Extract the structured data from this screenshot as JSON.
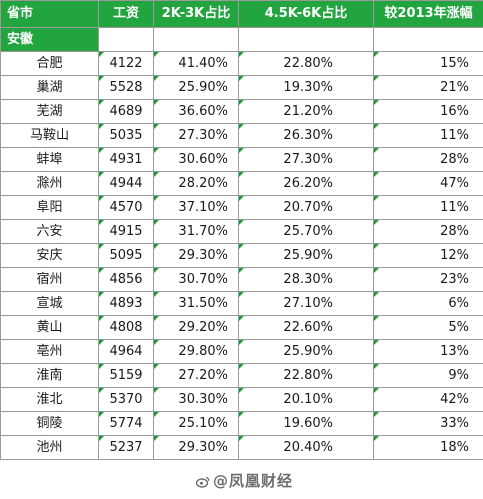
{
  "header": {
    "city": "省市",
    "wage": "工资",
    "share_2k_3k": "2K-3K占比",
    "share_4_5k_6k": "4.5K-6K占比",
    "growth_vs_2013": "较2013年涨幅"
  },
  "province": "安徽",
  "rows": [
    {
      "city": "合肥",
      "wage": "4122",
      "share_2k_3k": "41.40%",
      "share_4_5k_6k": "22.80%",
      "growth": "15%"
    },
    {
      "city": "巢湖",
      "wage": "5528",
      "share_2k_3k": "25.90%",
      "share_4_5k_6k": "19.30%",
      "growth": "21%"
    },
    {
      "city": "芜湖",
      "wage": "4689",
      "share_2k_3k": "36.60%",
      "share_4_5k_6k": "21.20%",
      "growth": "16%"
    },
    {
      "city": "马鞍山",
      "wage": "5035",
      "share_2k_3k": "27.30%",
      "share_4_5k_6k": "26.30%",
      "growth": "11%"
    },
    {
      "city": "蚌埠",
      "wage": "4931",
      "share_2k_3k": "30.60%",
      "share_4_5k_6k": "27.30%",
      "growth": "28%"
    },
    {
      "city": "滁州",
      "wage": "4944",
      "share_2k_3k": "28.20%",
      "share_4_5k_6k": "26.20%",
      "growth": "47%"
    },
    {
      "city": "阜阳",
      "wage": "4570",
      "share_2k_3k": "37.10%",
      "share_4_5k_6k": "20.70%",
      "growth": "11%"
    },
    {
      "city": "六安",
      "wage": "4915",
      "share_2k_3k": "31.70%",
      "share_4_5k_6k": "25.70%",
      "growth": "28%"
    },
    {
      "city": "安庆",
      "wage": "5095",
      "share_2k_3k": "29.30%",
      "share_4_5k_6k": "25.90%",
      "growth": "12%"
    },
    {
      "city": "宿州",
      "wage": "4856",
      "share_2k_3k": "30.70%",
      "share_4_5k_6k": "28.30%",
      "growth": "23%"
    },
    {
      "city": "宣城",
      "wage": "4893",
      "share_2k_3k": "31.50%",
      "share_4_5k_6k": "27.10%",
      "growth": "6%"
    },
    {
      "city": "黄山",
      "wage": "4808",
      "share_2k_3k": "29.20%",
      "share_4_5k_6k": "22.60%",
      "growth": "5%"
    },
    {
      "city": "亳州",
      "wage": "4964",
      "share_2k_3k": "29.80%",
      "share_4_5k_6k": "25.90%",
      "growth": "13%"
    },
    {
      "city": "淮南",
      "wage": "5159",
      "share_2k_3k": "27.20%",
      "share_4_5k_6k": "22.80%",
      "growth": "9%"
    },
    {
      "city": "淮北",
      "wage": "5370",
      "share_2k_3k": "30.30%",
      "share_4_5k_6k": "20.10%",
      "growth": "42%"
    },
    {
      "city": "铜陵",
      "wage": "5774",
      "share_2k_3k": "25.10%",
      "share_4_5k_6k": "19.60%",
      "growth": "33%"
    },
    {
      "city": "池州",
      "wage": "5237",
      "share_2k_3k": "29.30%",
      "share_4_5k_6k": "20.40%",
      "growth": "18%"
    }
  ],
  "watermark": "@凤凰财经",
  "watermark_icon": "weibo-icon",
  "colors": {
    "header_bg": "#22a53f",
    "header_text": "#ffffff",
    "grid": "#9a9a9a"
  }
}
